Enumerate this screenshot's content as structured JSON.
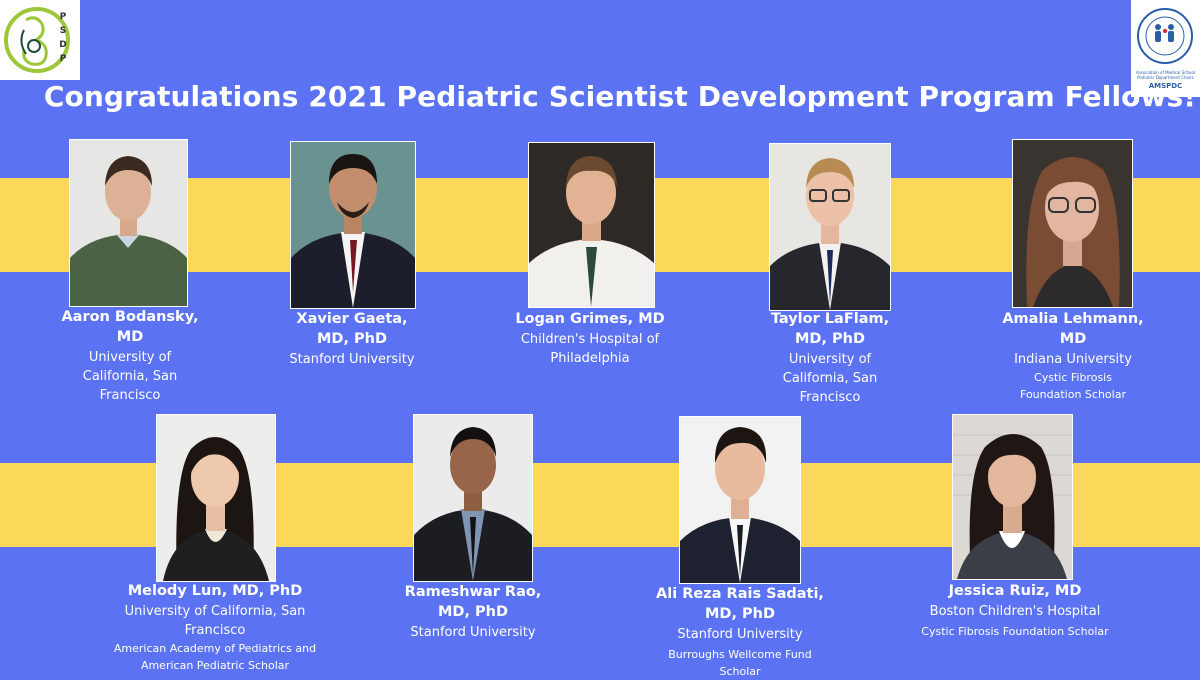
{
  "header": {
    "title": "Congratulations 2021 Pediatric Scientist Development Program Fellows!",
    "left_logo_text": "PSDP",
    "right_logo_text": "AMSPDC",
    "right_logo_ring_text": "Association of Medical School Pediatric Department Chairs"
  },
  "colors": {
    "background": "#5b73f2",
    "stripe": "#fcd85a",
    "logo_green": "#9cc73a"
  },
  "fellows": [
    {
      "name": "Aaron Bodansky, MD",
      "institution": "University of California, San Francisco",
      "award": ""
    },
    {
      "name": "Xavier Gaeta, MD, PhD",
      "institution": "Stanford University",
      "award": ""
    },
    {
      "name": "Logan Grimes, MD",
      "institution": "Children's Hospital of Philadelphia",
      "award": ""
    },
    {
      "name": "Taylor LaFlam, MD, PhD",
      "institution": "University of California, San Francisco",
      "award": ""
    },
    {
      "name": "Amalia Lehmann, MD",
      "institution": "Indiana University",
      "award": "Cystic Fibrosis Foundation Scholar"
    },
    {
      "name": "Melody Lun, MD, PhD",
      "institution": "University of California, San Francisco",
      "award": "American Academy of Pediatrics and American Pediatric Scholar"
    },
    {
      "name": "Rameshwar Rao, MD, PhD",
      "institution": "Stanford University",
      "award": ""
    },
    {
      "name": "Ali Reza Rais Sadati, MD, PhD",
      "institution": "Stanford University",
      "award": "Burroughs Wellcome Fund Scholar"
    },
    {
      "name": "Jessica Ruiz, MD",
      "institution": "Boston Children's Hospital",
      "award": "Cystic Fibrosis Foundation Scholar"
    }
  ]
}
